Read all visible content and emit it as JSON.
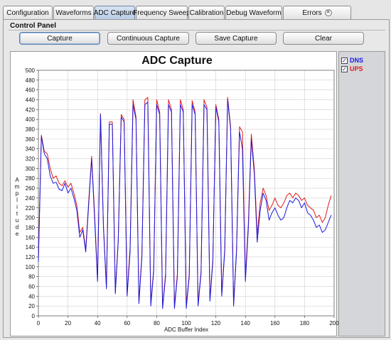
{
  "tabs": [
    {
      "label": "Configuration",
      "active": false
    },
    {
      "label": "Waveforms",
      "active": false
    },
    {
      "label": "ADC Capture",
      "active": true
    },
    {
      "label": "Frequency Sweep",
      "active": false
    },
    {
      "label": "Calibration",
      "active": false
    },
    {
      "label": "Debug Waveform",
      "active": false
    },
    {
      "label": "Errors",
      "active": false,
      "closable": true
    }
  ],
  "control_panel": {
    "title": "Control Panel",
    "buttons": {
      "capture": "Capture",
      "continuous": "Continuous Capture",
      "save": "Save Capture",
      "clear": "Clear"
    }
  },
  "legend": {
    "dns": {
      "label": "DNS",
      "checked": true,
      "color": "#1a1ae0"
    },
    "ups": {
      "label": "UPS",
      "checked": true,
      "color": "#e01a1a"
    }
  },
  "chart_data": {
    "type": "line",
    "title": "ADC Capture",
    "xlabel": "ADC Buffer Index",
    "ylabel": "Amplitude",
    "xlim": [
      0,
      200
    ],
    "ylim": [
      0,
      500
    ],
    "x_ticks": [
      0,
      20,
      40,
      60,
      80,
      100,
      120,
      140,
      160,
      180,
      200
    ],
    "y_ticks": [
      0,
      20,
      40,
      60,
      80,
      100,
      120,
      140,
      160,
      180,
      200,
      220,
      240,
      260,
      280,
      300,
      320,
      340,
      360,
      380,
      400,
      420,
      440,
      460,
      480,
      500
    ],
    "grid": true,
    "series": [
      {
        "name": "DNS",
        "color": "#1a1ae0",
        "points": [
          [
            0,
            110
          ],
          [
            2,
            365
          ],
          [
            4,
            330
          ],
          [
            6,
            320
          ],
          [
            8,
            285
          ],
          [
            10,
            270
          ],
          [
            12,
            272
          ],
          [
            14,
            258
          ],
          [
            16,
            255
          ],
          [
            18,
            270
          ],
          [
            20,
            250
          ],
          [
            22,
            260
          ],
          [
            24,
            240
          ],
          [
            26,
            215
          ],
          [
            28,
            160
          ],
          [
            30,
            175
          ],
          [
            32,
            130
          ],
          [
            34,
            225
          ],
          [
            36,
            320
          ],
          [
            38,
            200
          ],
          [
            40,
            70
          ],
          [
            42,
            410
          ],
          [
            44,
            180
          ],
          [
            46,
            55
          ],
          [
            48,
            390
          ],
          [
            50,
            390
          ],
          [
            52,
            45
          ],
          [
            54,
            150
          ],
          [
            56,
            405
          ],
          [
            58,
            395
          ],
          [
            60,
            40
          ],
          [
            62,
            130
          ],
          [
            64,
            430
          ],
          [
            66,
            400
          ],
          [
            68,
            25
          ],
          [
            70,
            120
          ],
          [
            72,
            430
          ],
          [
            74,
            435
          ],
          [
            76,
            20
          ],
          [
            78,
            90
          ],
          [
            80,
            430
          ],
          [
            82,
            410
          ],
          [
            84,
            15
          ],
          [
            86,
            80
          ],
          [
            88,
            430
          ],
          [
            90,
            415
          ],
          [
            92,
            15
          ],
          [
            94,
            80
          ],
          [
            96,
            430
          ],
          [
            98,
            415
          ],
          [
            100,
            15
          ],
          [
            102,
            80
          ],
          [
            104,
            430
          ],
          [
            106,
            410
          ],
          [
            108,
            20
          ],
          [
            110,
            85
          ],
          [
            112,
            430
          ],
          [
            114,
            420
          ],
          [
            116,
            30
          ],
          [
            118,
            110
          ],
          [
            120,
            425
          ],
          [
            122,
            395
          ],
          [
            124,
            40
          ],
          [
            126,
            130
          ],
          [
            128,
            440
          ],
          [
            130,
            380
          ],
          [
            132,
            20
          ],
          [
            134,
            130
          ],
          [
            136,
            375
          ],
          [
            138,
            340
          ],
          [
            140,
            70
          ],
          [
            142,
            180
          ],
          [
            144,
            360
          ],
          [
            146,
            290
          ],
          [
            148,
            150
          ],
          [
            150,
            215
          ],
          [
            152,
            250
          ],
          [
            154,
            235
          ],
          [
            156,
            195
          ],
          [
            158,
            210
          ],
          [
            160,
            220
          ],
          [
            162,
            205
          ],
          [
            164,
            195
          ],
          [
            166,
            200
          ],
          [
            168,
            220
          ],
          [
            170,
            235
          ],
          [
            172,
            230
          ],
          [
            174,
            240
          ],
          [
            176,
            235
          ],
          [
            178,
            220
          ],
          [
            180,
            230
          ],
          [
            182,
            210
          ],
          [
            184,
            205
          ],
          [
            186,
            195
          ],
          [
            188,
            180
          ],
          [
            190,
            185
          ],
          [
            192,
            170
          ],
          [
            194,
            175
          ],
          [
            196,
            190
          ],
          [
            198,
            205
          ]
        ]
      },
      {
        "name": "UPS",
        "color": "#e01a1a",
        "points": [
          [
            0,
            120
          ],
          [
            2,
            368
          ],
          [
            4,
            335
          ],
          [
            6,
            330
          ],
          [
            8,
            300
          ],
          [
            10,
            280
          ],
          [
            12,
            285
          ],
          [
            14,
            270
          ],
          [
            16,
            265
          ],
          [
            18,
            275
          ],
          [
            20,
            262
          ],
          [
            22,
            270
          ],
          [
            24,
            250
          ],
          [
            26,
            225
          ],
          [
            28,
            170
          ],
          [
            30,
            180
          ],
          [
            32,
            135
          ],
          [
            34,
            232
          ],
          [
            36,
            325
          ],
          [
            38,
            210
          ],
          [
            40,
            75
          ],
          [
            42,
            412
          ],
          [
            44,
            185
          ],
          [
            46,
            60
          ],
          [
            48,
            395
          ],
          [
            50,
            395
          ],
          [
            52,
            50
          ],
          [
            54,
            155
          ],
          [
            56,
            410
          ],
          [
            58,
            400
          ],
          [
            60,
            45
          ],
          [
            62,
            140
          ],
          [
            64,
            440
          ],
          [
            66,
            405
          ],
          [
            68,
            30
          ],
          [
            70,
            125
          ],
          [
            72,
            440
          ],
          [
            74,
            445
          ],
          [
            76,
            25
          ],
          [
            78,
            95
          ],
          [
            80,
            440
          ],
          [
            82,
            415
          ],
          [
            84,
            20
          ],
          [
            86,
            85
          ],
          [
            88,
            440
          ],
          [
            90,
            420
          ],
          [
            92,
            20
          ],
          [
            94,
            85
          ],
          [
            96,
            440
          ],
          [
            98,
            420
          ],
          [
            100,
            20
          ],
          [
            102,
            85
          ],
          [
            104,
            438
          ],
          [
            106,
            415
          ],
          [
            108,
            25
          ],
          [
            110,
            90
          ],
          [
            112,
            440
          ],
          [
            114,
            425
          ],
          [
            116,
            35
          ],
          [
            118,
            115
          ],
          [
            120,
            430
          ],
          [
            122,
            400
          ],
          [
            124,
            45
          ],
          [
            126,
            135
          ],
          [
            128,
            445
          ],
          [
            130,
            385
          ],
          [
            132,
            25
          ],
          [
            134,
            135
          ],
          [
            136,
            385
          ],
          [
            138,
            375
          ],
          [
            140,
            80
          ],
          [
            142,
            190
          ],
          [
            144,
            370
          ],
          [
            146,
            300
          ],
          [
            148,
            165
          ],
          [
            150,
            230
          ],
          [
            152,
            260
          ],
          [
            154,
            245
          ],
          [
            156,
            215
          ],
          [
            158,
            225
          ],
          [
            160,
            240
          ],
          [
            162,
            225
          ],
          [
            164,
            220
          ],
          [
            166,
            230
          ],
          [
            168,
            245
          ],
          [
            170,
            250
          ],
          [
            172,
            240
          ],
          [
            174,
            250
          ],
          [
            176,
            245
          ],
          [
            178,
            235
          ],
          [
            180,
            240
          ],
          [
            182,
            225
          ],
          [
            184,
            220
          ],
          [
            186,
            215
          ],
          [
            188,
            200
          ],
          [
            190,
            205
          ],
          [
            192,
            190
          ],
          [
            194,
            200
          ],
          [
            196,
            225
          ],
          [
            198,
            245
          ]
        ]
      }
    ]
  }
}
